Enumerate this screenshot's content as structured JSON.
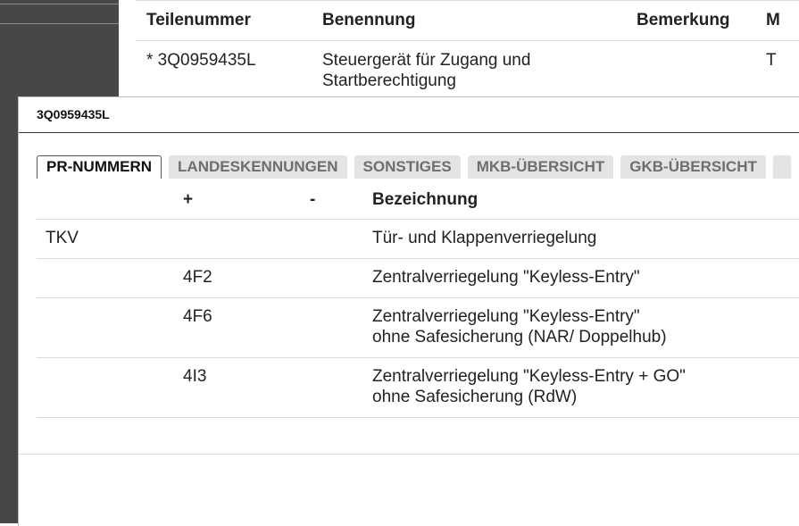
{
  "background_table": {
    "headers": [
      "Teilenummer",
      "Benennung",
      "Bemerkung",
      "M"
    ],
    "rows": [
      {
        "part_number": "* 3Q0959435L",
        "name": "Steuergerät für Zugang und\nStartberechtigung",
        "m": "T"
      }
    ]
  },
  "dialog": {
    "title": "3Q0959435L",
    "tabs": [
      "PR-NUMMERN",
      "LANDESKENNUNGEN",
      "SONSTIGES",
      "MKB-ÜBERSICHT",
      "GKB-ÜBERSICHT"
    ],
    "table": {
      "headers": {
        "plus": "+",
        "minus": "-",
        "description": "Bezeichnung"
      },
      "rows": [
        {
          "code": "TKV",
          "description": "Tür- und Klappenverriegelung"
        },
        {
          "plus": "4F2",
          "description": "Zentralverriegelung \"Keyless-Entry\""
        },
        {
          "plus": "4F6",
          "description": "Zentralverriegelung \"Keyless-Entry\"\nohne Safesicherung (NAR/ Doppelhub)"
        },
        {
          "plus": "4I3",
          "description": "Zentralverriegelung \"Keyless-Entry + GO\"\nohne Safesicherung (RdW)"
        }
      ]
    }
  }
}
